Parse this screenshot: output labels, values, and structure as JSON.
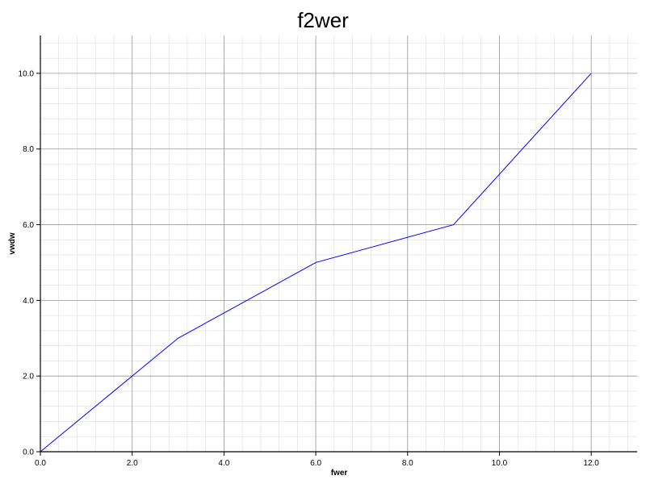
{
  "chart_data": {
    "type": "line",
    "title": "f2wer",
    "xlabel": "fwer",
    "ylabel": "vwdw",
    "xlim": [
      0,
      13
    ],
    "ylim": [
      0,
      11
    ],
    "x_ticks": [
      0,
      2,
      4,
      6,
      8,
      10,
      12
    ],
    "y_ticks": [
      0,
      2,
      4,
      6,
      8,
      10
    ],
    "x_tick_labels": [
      "0.0",
      "2.0",
      "4.0",
      "6.0",
      "8.0",
      "10.0",
      "12.0"
    ],
    "y_tick_labels": [
      "0.0",
      "2.0",
      "4.0",
      "6.0",
      "8.0",
      "10.0"
    ],
    "x_minor_step": 0.4,
    "y_minor_step": 0.4,
    "grid": true,
    "series": [
      {
        "color": "#0000ff",
        "x": [
          0,
          3,
          6,
          9,
          12
        ],
        "y": [
          0,
          3,
          5,
          6,
          10
        ]
      }
    ]
  }
}
